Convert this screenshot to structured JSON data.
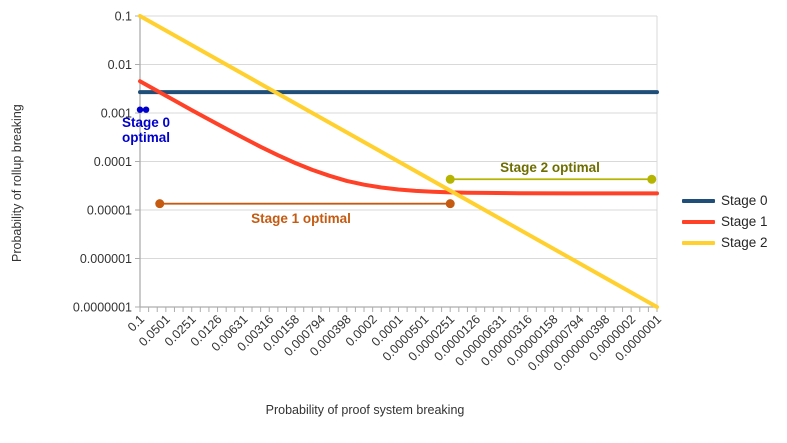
{
  "chart_data": {
    "type": "line",
    "title": "",
    "xlabel": "Probability of proof system breaking",
    "ylabel": "Probability of rollup breaking",
    "x_scale": "log-descending",
    "y_scale": "log",
    "x_range": [
      0.1,
      1e-07
    ],
    "y_range": [
      0.1,
      1e-07
    ],
    "grid": "horizontal-decade-gridlines",
    "legend_position": "right",
    "x_tick_labels": [
      "0.1",
      "0.0501",
      "0.0251",
      "0.0126",
      "0.00631",
      "0.00316",
      "0.00158",
      "0.000794",
      "0.000398",
      "0.0002",
      "0.0001",
      "0.0000501",
      "0.0000251",
      "0.0000126",
      "0.00000631",
      "0.00000316",
      "0.00000158",
      "0.000000794",
      "0.000000398",
      "0.0000002",
      "0.0000001"
    ],
    "y_tick_labels": [
      "0.1",
      "0.01",
      "0.001",
      "0.0001",
      "0.00001",
      "0.000001",
      "0.0000001"
    ],
    "series": [
      {
        "name": "Stage 0",
        "color": "#1F4E79",
        "points": [
          [
            0.1,
            0.0027
          ],
          [
            1e-07,
            0.0027
          ]
        ]
      },
      {
        "name": "Stage 1",
        "color": "#FF4227",
        "points": [
          [
            0.1,
            0.00452
          ],
          [
            0.0631,
            0.00286
          ],
          [
            0.0398,
            0.00181
          ],
          [
            0.0251,
            0.00115
          ],
          [
            0.0158,
            0.000733
          ],
          [
            0.01,
            0.000472
          ],
          [
            0.00631,
            0.000306
          ],
          [
            0.00398,
            0.000201
          ],
          [
            0.00251,
            0.000135
          ],
          [
            0.00158,
            9.31e-05
          ],
          [
            0.001,
            6.7e-05
          ],
          [
            0.000631,
            5.06e-05
          ],
          [
            0.000398,
            3.99e-05
          ],
          [
            0.000251,
            3.33e-05
          ],
          [
            0.000158,
            2.91e-05
          ],
          [
            0.0001,
            2.65e-05
          ],
          [
            6.31e-05,
            2.48e-05
          ],
          [
            3.98e-05,
            2.38e-05
          ],
          [
            2.51e-05,
            2.31e-05
          ],
          [
            1.58e-05,
            2.27e-05
          ],
          [
            1e-05,
            2.25e-05
          ],
          [
            3.98e-06,
            2.22e-05
          ],
          [
            1e-06,
            2.2e-05
          ],
          [
            1e-07,
            2.2e-05
          ]
        ]
      },
      {
        "name": "Stage 2",
        "color": "#FFD02E",
        "points": [
          [
            0.1,
            0.1
          ],
          [
            1e-07,
            1e-07
          ]
        ]
      }
    ],
    "annotations": [
      {
        "label": "Stage 0\noptimal",
        "text_color": "#0000CC",
        "marker_color": "#0000CC",
        "x_start": 0.1,
        "x_end": 0.085,
        "y": 0.00117
      },
      {
        "label": "Stage 1 optimal",
        "text_color": "#C55A11",
        "marker_color": "#C55A11",
        "x_start": 0.059,
        "x_end": 2.51e-05,
        "y": 1.35e-05
      },
      {
        "label": "Stage 2 optimal",
        "text_color": "#6E6E00",
        "marker_color": "#B5B400",
        "x_start": 2.51e-05,
        "x_end": 1.15e-07,
        "y": 4.3e-05
      }
    ],
    "colors": {
      "grid": "#D9D9D9",
      "axis": "#ADADAD",
      "tick_label": "#333333",
      "legend_text": "#262626",
      "background": "#FFFFFF"
    }
  }
}
